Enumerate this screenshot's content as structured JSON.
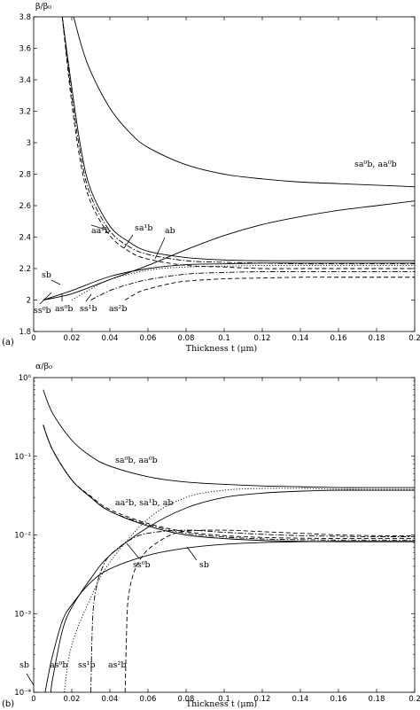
{
  "chart_data": [
    {
      "type": "line",
      "panel_label": "(a)",
      "ylabel": "β/β₀",
      "xlabel": "Thickness t (μm)",
      "xlim": [
        0,
        0.2
      ],
      "ylim": [
        1.8,
        3.8
      ],
      "x_ticks": [
        "0",
        "0.02",
        "0.04",
        "0.06",
        "0.08",
        "0.1",
        "0.12",
        "0.14",
        "0.16",
        "0.18",
        "0.2"
      ],
      "y_ticks": [
        "1.8",
        "2",
        "2.2",
        "2.4",
        "2.6",
        "2.8",
        "3",
        "3.2",
        "3.4",
        "3.6",
        "3.8"
      ],
      "series": [
        {
          "style": "solid",
          "x": [
            0.021,
            0.025,
            0.03,
            0.04,
            0.05,
            0.06,
            0.08,
            0.1,
            0.12,
            0.14,
            0.16,
            0.18,
            0.2
          ],
          "y": [
            3.8,
            3.62,
            3.45,
            3.22,
            3.07,
            2.97,
            2.86,
            2.8,
            2.77,
            2.75,
            2.74,
            2.73,
            2.72
          ]
        },
        {
          "style": "solid",
          "x": [
            0.005,
            0.02,
            0.04,
            0.06,
            0.08,
            0.1,
            0.12,
            0.14,
            0.16,
            0.18,
            0.2
          ],
          "y": [
            2.0,
            2.04,
            2.13,
            2.22,
            2.32,
            2.41,
            2.48,
            2.53,
            2.57,
            2.6,
            2.63
          ]
        },
        {
          "style": "solid",
          "x": [
            0.005,
            0.02,
            0.04,
            0.06,
            0.08,
            0.1,
            0.12,
            0.14,
            0.16,
            0.18,
            0.2
          ],
          "y": [
            2.0,
            2.06,
            2.15,
            2.2,
            2.225,
            2.23,
            2.235,
            2.235,
            2.235,
            2.235,
            2.235
          ]
        },
        {
          "style": "solid",
          "x": [
            0.015,
            0.02,
            0.025,
            0.03,
            0.04,
            0.05,
            0.06,
            0.08,
            0.1,
            0.12,
            0.14,
            0.16,
            0.18,
            0.2
          ],
          "y": [
            3.8,
            3.35,
            2.95,
            2.7,
            2.47,
            2.37,
            2.31,
            2.27,
            2.255,
            2.25,
            2.25,
            2.25,
            2.25,
            2.25
          ]
        },
        {
          "style": "dashdot",
          "x": [
            0.015,
            0.02,
            0.025,
            0.03,
            0.04,
            0.05,
            0.06,
            0.08,
            0.1,
            0.12,
            0.14,
            0.16,
            0.18,
            0.2
          ],
          "y": [
            3.8,
            3.3,
            2.9,
            2.66,
            2.44,
            2.34,
            2.29,
            2.25,
            2.24,
            2.235,
            2.23,
            2.23,
            2.23,
            2.23
          ]
        },
        {
          "style": "dashed",
          "x": [
            0.015,
            0.02,
            0.025,
            0.03,
            0.04,
            0.05,
            0.06,
            0.08,
            0.1,
            0.12,
            0.14,
            0.16,
            0.18,
            0.2
          ],
          "y": [
            3.8,
            3.25,
            2.85,
            2.62,
            2.41,
            2.31,
            2.26,
            2.22,
            2.21,
            2.2,
            2.2,
            2.2,
            2.2,
            2.2
          ]
        },
        {
          "style": "dotted",
          "x": [
            0.02,
            0.03,
            0.04,
            0.06,
            0.08,
            0.1,
            0.12,
            0.14,
            0.16,
            0.18,
            0.2
          ],
          "y": [
            2.0,
            2.07,
            2.13,
            2.19,
            2.21,
            2.215,
            2.22,
            2.22,
            2.22,
            2.22,
            2.22
          ]
        },
        {
          "style": "dashdot",
          "x": [
            0.03,
            0.04,
            0.05,
            0.06,
            0.08,
            0.1,
            0.12,
            0.14,
            0.16,
            0.18,
            0.2
          ],
          "y": [
            2.0,
            2.06,
            2.1,
            2.13,
            2.165,
            2.175,
            2.18,
            2.18,
            2.18,
            2.18,
            2.18
          ]
        },
        {
          "style": "dashed",
          "x": [
            0.048,
            0.055,
            0.06,
            0.07,
            0.08,
            0.1,
            0.12,
            0.14,
            0.16,
            0.18,
            0.2
          ],
          "y": [
            2.0,
            2.05,
            2.07,
            2.1,
            2.12,
            2.135,
            2.14,
            2.145,
            2.145,
            2.145,
            2.145
          ]
        }
      ],
      "annotations": {
        "sa0_aa0": "sa⁰b, aa⁰b",
        "aa2": "aa²b",
        "sa1": "sa¹b",
        "ab": "ab",
        "sb": "sb",
        "ss0": "ss⁰b",
        "as0": "as⁰b",
        "ss1": "ss¹b",
        "as2": "as²b"
      }
    },
    {
      "type": "line",
      "panel_label": "(b)",
      "ylabel": "α/β₀",
      "xlabel": "Thickness t (μm)",
      "xlim": [
        0,
        0.2
      ],
      "ylim": [
        0.0001,
        1
      ],
      "yscale": "log",
      "x_ticks": [
        "0",
        "0.02",
        "0.04",
        "0.06",
        "0.08",
        "0.1",
        "0.12",
        "0.14",
        "0.16",
        "0.18",
        "0.2"
      ],
      "y_ticks": [
        "10⁻⁴",
        "10⁻³",
        "10⁻²",
        "10⁻¹",
        "10⁰"
      ],
      "series": [
        {
          "style": "solid",
          "x": [
            0.005,
            0.01,
            0.02,
            0.03,
            0.04,
            0.06,
            0.08,
            0.1,
            0.12,
            0.14,
            0.16,
            0.18,
            0.2
          ],
          "y": [
            0.7,
            0.35,
            0.16,
            0.1,
            0.075,
            0.055,
            0.047,
            0.044,
            0.042,
            0.041,
            0.04,
            0.04,
            0.04
          ]
        },
        {
          "style": "solid",
          "x": [
            0.005,
            0.01,
            0.02,
            0.03,
            0.04,
            0.06,
            0.08,
            0.1,
            0.12,
            0.14,
            0.16,
            0.18,
            0.2
          ],
          "y": [
            0.25,
            0.12,
            0.05,
            0.03,
            0.02,
            0.013,
            0.01,
            0.009,
            0.0085,
            0.0083,
            0.0082,
            0.0082,
            0.0082
          ]
        },
        {
          "style": "dashed",
          "x": [
            0.005,
            0.01,
            0.02,
            0.03,
            0.04,
            0.06,
            0.08,
            0.1,
            0.12,
            0.14,
            0.16,
            0.18,
            0.2
          ],
          "y": [
            0.25,
            0.12,
            0.05,
            0.031,
            0.021,
            0.014,
            0.011,
            0.0098,
            0.0093,
            0.0091,
            0.009,
            0.009,
            0.009
          ]
        },
        {
          "style": "dashdot",
          "x": [
            0.005,
            0.01,
            0.02,
            0.03,
            0.04,
            0.06,
            0.08,
            0.1,
            0.12,
            0.14,
            0.16,
            0.18,
            0.2
          ],
          "y": [
            0.25,
            0.12,
            0.05,
            0.03,
            0.02,
            0.0135,
            0.0105,
            0.0094,
            0.0089,
            0.0087,
            0.0086,
            0.0086,
            0.0086
          ]
        },
        {
          "style": "solid",
          "x": [
            0.006,
            0.008,
            0.01,
            0.015,
            0.02,
            0.03,
            0.04,
            0.06,
            0.08,
            0.1,
            0.12,
            0.14,
            0.16,
            0.18,
            0.2
          ],
          "y": [
            0.0001,
            0.00018,
            0.0003,
            0.0008,
            0.0013,
            0.0025,
            0.0037,
            0.0055,
            0.0068,
            0.0076,
            0.008,
            0.0082,
            0.0083,
            0.0083,
            0.0083
          ]
        },
        {
          "style": "solid",
          "x": [
            0.009,
            0.01,
            0.015,
            0.02,
            0.03,
            0.04,
            0.06,
            0.08,
            0.1,
            0.12,
            0.14,
            0.16,
            0.18,
            0.2
          ],
          "y": [
            0.0001,
            0.00015,
            0.0006,
            0.0012,
            0.0028,
            0.0055,
            0.0125,
            0.022,
            0.03,
            0.034,
            0.036,
            0.037,
            0.037,
            0.037
          ]
        },
        {
          "style": "dotted",
          "x": [
            0.016,
            0.02,
            0.03,
            0.04,
            0.06,
            0.08,
            0.1,
            0.12,
            0.14,
            0.16,
            0.18,
            0.2
          ],
          "y": [
            0.0001,
            0.0004,
            0.0016,
            0.0045,
            0.016,
            0.03,
            0.037,
            0.039,
            0.039,
            0.038,
            0.038,
            0.038
          ]
        },
        {
          "style": "dashdot",
          "x": [
            0.03,
            0.031,
            0.033,
            0.036,
            0.04,
            0.05,
            0.06,
            0.08,
            0.1,
            0.12,
            0.14,
            0.16,
            0.18,
            0.2
          ],
          "y": [
            0.0001,
            0.0009,
            0.0022,
            0.0038,
            0.0055,
            0.0085,
            0.0105,
            0.0115,
            0.0108,
            0.0102,
            0.0098,
            0.0096,
            0.0095,
            0.0095
          ]
        },
        {
          "style": "dashed",
          "x": [
            0.048,
            0.049,
            0.05,
            0.052,
            0.055,
            0.06,
            0.07,
            0.08,
            0.1,
            0.12,
            0.14,
            0.16,
            0.18,
            0.2
          ],
          "y": [
            0.0001,
            0.0009,
            0.0018,
            0.003,
            0.0045,
            0.0065,
            0.0095,
            0.0112,
            0.0115,
            0.011,
            0.0105,
            0.01,
            0.0098,
            0.0097
          ]
        }
      ],
      "annotations": {
        "sa0_aa0": "sa⁰b, aa⁰b",
        "aa2_sa1_ab": "aa²b, sa¹b, ab",
        "ss0": "ss⁰b",
        "sb_right": "sb",
        "sb_left": "sb",
        "as0": "as⁰b",
        "ss1": "ss¹b",
        "as2": "as²b"
      }
    }
  ]
}
